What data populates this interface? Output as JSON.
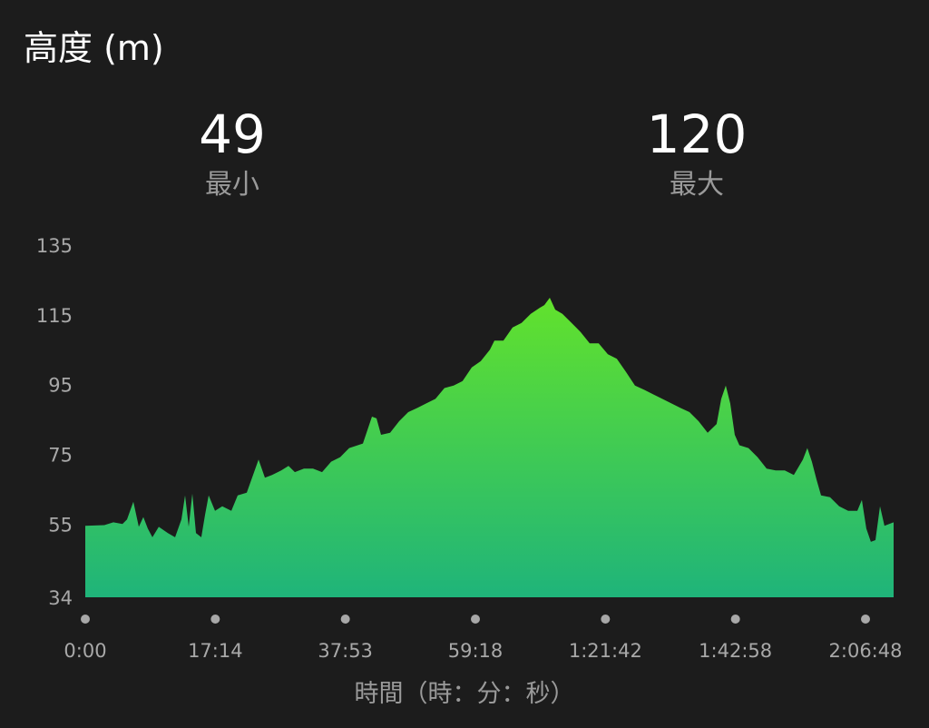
{
  "header": {
    "title": "高度 (m)"
  },
  "stats": {
    "min": {
      "value": "49",
      "label": "最小"
    },
    "max": {
      "value": "120",
      "label": "最大"
    }
  },
  "colors": {
    "background": "#1c1c1c",
    "fill_top": "#62e22c",
    "fill_bottom": "#1fb47a",
    "dot": "#a8a8a8"
  },
  "chart_data": {
    "type": "area",
    "title": "高度 (m)",
    "xlabel": "時間（時：分：秒）",
    "ylabel": "",
    "x_unit": "seconds",
    "xlim": [
      0,
      7883
    ],
    "ylim": [
      34,
      135
    ],
    "y_ticks": [
      135,
      115,
      95,
      75,
      55,
      34
    ],
    "x_tick_labels": [
      "0:00",
      "17:14",
      "37:53",
      "59:18",
      "1:21:42",
      "1:42:58",
      "2:06:48"
    ],
    "grid": false,
    "x": [
      0,
      186,
      274,
      363,
      407,
      469,
      522,
      566,
      610,
      655,
      717,
      805,
      876,
      938,
      973,
      1009,
      1044,
      1079,
      1132,
      1168,
      1203,
      1265,
      1336,
      1424,
      1486,
      1575,
      1690,
      1752,
      1822,
      1911,
      1982,
      2044,
      2132,
      2221,
      2309,
      2398,
      2486,
      2574,
      2707,
      2796,
      2840,
      2884,
      2973,
      3061,
      3150,
      3238,
      3326,
      3415,
      3503,
      3592,
      3680,
      3769,
      3857,
      3946,
      3990,
      4078,
      4167,
      4255,
      4344,
      4432,
      4477,
      4530,
      4583,
      4653,
      4742,
      4830,
      4919,
      5007,
      5096,
      5184,
      5273,
      5361,
      5450,
      5538,
      5627,
      5715,
      5804,
      5892,
      5981,
      6069,
      6157,
      6202,
      6246,
      6290,
      6334,
      6379,
      6467,
      6556,
      6644,
      6733,
      6821,
      6910,
      6998,
      7042,
      7086,
      7131,
      7175,
      7263,
      7352,
      7440,
      7529,
      7573,
      7617,
      7661,
      7706,
      7750,
      7794,
      7883
    ],
    "values": [
      54.5,
      54.7,
      55.5,
      55,
      56.3,
      61.4,
      54.2,
      57,
      53.7,
      51.2,
      54.2,
      52.4,
      51.2,
      56.3,
      63.2,
      54.2,
      63.7,
      52.4,
      51.2,
      57.6,
      63.2,
      58.8,
      60.1,
      58.8,
      63.2,
      64,
      73.5,
      68.3,
      69.1,
      70.4,
      71.7,
      69.9,
      70.9,
      70.9,
      69.9,
      72.9,
      74.2,
      76.8,
      78.1,
      85.8,
      85.3,
      80.6,
      81.2,
      84.5,
      87.1,
      88.3,
      89.6,
      90.9,
      94,
      94.7,
      96,
      99.9,
      101.7,
      105,
      107.6,
      107.6,
      111.4,
      112.7,
      115.3,
      117,
      117.8,
      119.9,
      116.5,
      115.3,
      112.7,
      110.1,
      106.8,
      106.8,
      103.7,
      102.4,
      98.6,
      94.7,
      93.5,
      92.2,
      90.9,
      89.6,
      88.3,
      87.1,
      84.5,
      81.2,
      83.7,
      90.9,
      94.7,
      89.6,
      80.6,
      77.6,
      76.8,
      74.2,
      70.9,
      70.4,
      70.4,
      69.1,
      73.5,
      76.8,
      72.9,
      67.8,
      63.2,
      62.7,
      60.1,
      58.8,
      58.8,
      61.9,
      53.7,
      49.9,
      50.4,
      60.1,
      54.5,
      55.5
    ]
  }
}
